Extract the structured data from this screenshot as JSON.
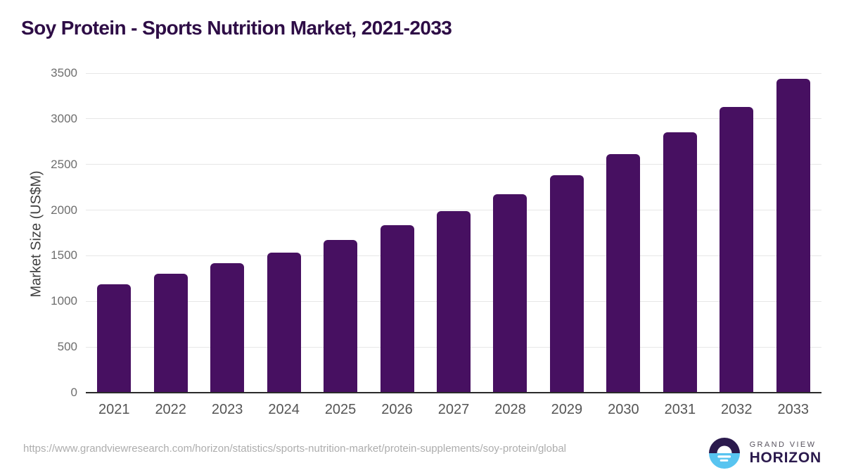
{
  "header": {
    "title": "Soy Protein - Sports Nutrition Market, 2021-2033"
  },
  "chart_data": {
    "type": "bar",
    "title": "Soy Protein - Sports Nutrition Market, 2021-2033",
    "categories": [
      "2021",
      "2022",
      "2023",
      "2024",
      "2025",
      "2026",
      "2027",
      "2028",
      "2029",
      "2030",
      "2031",
      "2032",
      "2033"
    ],
    "values": [
      1190,
      1300,
      1415,
      1535,
      1675,
      1835,
      1990,
      2175,
      2380,
      2610,
      2855,
      3130,
      3440
    ],
    "xlabel": "",
    "ylabel": "Market Size (US$M)",
    "ylim": [
      0,
      3500
    ],
    "yticks": [
      0,
      500,
      1000,
      1500,
      2000,
      2500,
      3000,
      3500
    ],
    "grid": true,
    "legend": false
  },
  "footer": {
    "source_url": "https://www.grandviewresearch.com/horizon/statistics/sports-nutrition-market/protein-supplements/soy-protein/global",
    "logo": {
      "line1": "GRAND VIEW",
      "line2": "HORIZON"
    }
  },
  "colors": {
    "title": "#2e0d46",
    "bar": "#471061",
    "gridline": "#e7e7e7",
    "axis_line": "#2b2b2b",
    "tick_label": "#6e6e6e",
    "x_label": "#555555",
    "url_text": "#adadad",
    "logo_navy": "#2b1a4d",
    "logo_blue": "#58c4f0"
  }
}
